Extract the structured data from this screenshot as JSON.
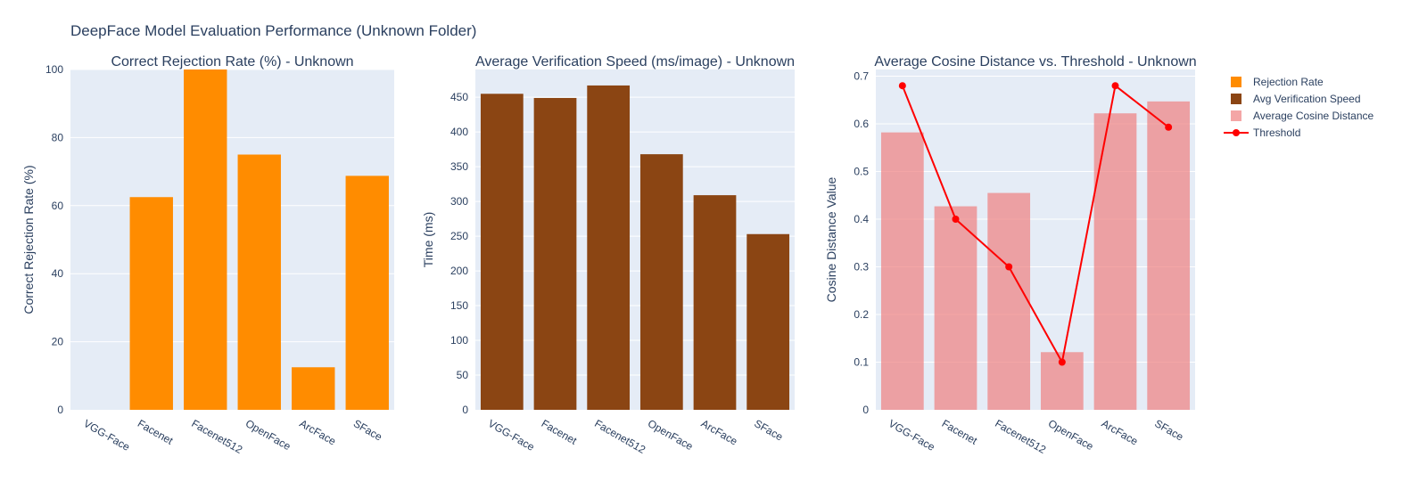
{
  "title": "DeepFace Model Evaluation Performance (Unknown Folder)",
  "colors": {
    "rejection": "#ff8c00",
    "speed": "#8b4513",
    "cosine": "#f08080",
    "threshold": "#ff0000",
    "plot_bg": "#e5ecf6",
    "grid": "#ffffff",
    "text": "#2a3f5f"
  },
  "legend": {
    "placement": "top-right",
    "items": [
      {
        "label": "Rejection Rate",
        "kind": "bar",
        "color": "#ff8c00"
      },
      {
        "label": "Avg Verification Speed",
        "kind": "bar",
        "color": "#8b4513"
      },
      {
        "label": "Average Cosine Distance",
        "kind": "bar",
        "color": "#f08080"
      },
      {
        "label": "Threshold",
        "kind": "line",
        "color": "#ff0000"
      }
    ]
  },
  "chart_data": [
    {
      "type": "bar",
      "title": "Correct Rejection Rate (%) - Unknown",
      "xlabel": "",
      "ylabel": "Correct Rejection Rate (%)",
      "categories": [
        "VGG-Face",
        "Facenet",
        "Facenet512",
        "OpenFace",
        "ArcFace",
        "SFace"
      ],
      "series": [
        {
          "name": "Rejection Rate",
          "values": [
            0,
            62.5,
            100,
            75,
            12.5,
            68.75
          ]
        }
      ],
      "ylim": [
        0,
        100
      ],
      "yticks": [
        0,
        20,
        40,
        60,
        80,
        100
      ],
      "grid": true
    },
    {
      "type": "bar",
      "title": "Average Verification Speed (ms/image) - Unknown",
      "xlabel": "",
      "ylabel": "Time (ms)",
      "categories": [
        "VGG-Face",
        "Facenet",
        "Facenet512",
        "OpenFace",
        "ArcFace",
        "SFace"
      ],
      "series": [
        {
          "name": "Avg Verification Speed",
          "values": [
            455,
            449,
            467,
            368,
            309,
            253
          ]
        }
      ],
      "ylim": [
        0,
        490
      ],
      "yticks": [
        0,
        50,
        100,
        150,
        200,
        250,
        300,
        350,
        400,
        450
      ],
      "grid": true
    },
    {
      "type": "bar+line",
      "title": "Average Cosine Distance vs. Threshold - Unknown",
      "xlabel": "",
      "ylabel": "Cosine Distance Value",
      "categories": [
        "VGG-Face",
        "Facenet",
        "Facenet512",
        "OpenFace",
        "ArcFace",
        "SFace"
      ],
      "series": [
        {
          "name": "Average Cosine Distance",
          "type": "bar",
          "values": [
            0.582,
            0.427,
            0.455,
            0.121,
            0.622,
            0.647
          ]
        },
        {
          "name": "Threshold",
          "type": "line",
          "values": [
            0.68,
            0.4,
            0.3,
            0.1,
            0.68,
            0.593
          ]
        }
      ],
      "ylim": [
        0,
        0.714
      ],
      "yticks": [
        0,
        0.1,
        0.2,
        0.3,
        0.4,
        0.5,
        0.6,
        0.7
      ],
      "grid": true
    }
  ]
}
